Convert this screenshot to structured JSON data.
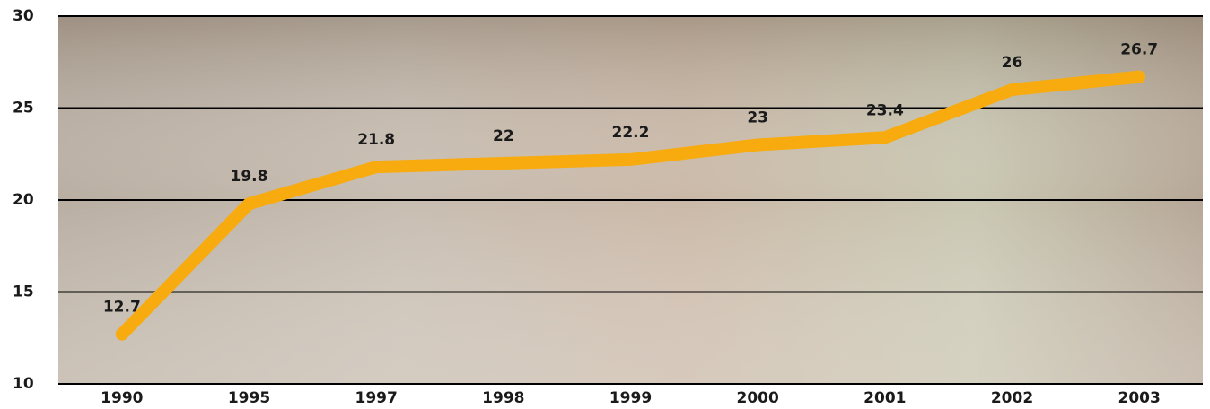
{
  "chart_data": {
    "type": "line",
    "categories": [
      "1990",
      "1995",
      "1997",
      "1998",
      "1999",
      "2000",
      "2001",
      "2002",
      "2003"
    ],
    "values": [
      12.7,
      19.8,
      21.8,
      22,
      22.2,
      23,
      23.4,
      26,
      26.7
    ],
    "color": "#f7ab0f",
    "ylim": [
      10,
      30
    ],
    "yticks": [
      10,
      15,
      20,
      25,
      30
    ],
    "grid": true
  }
}
